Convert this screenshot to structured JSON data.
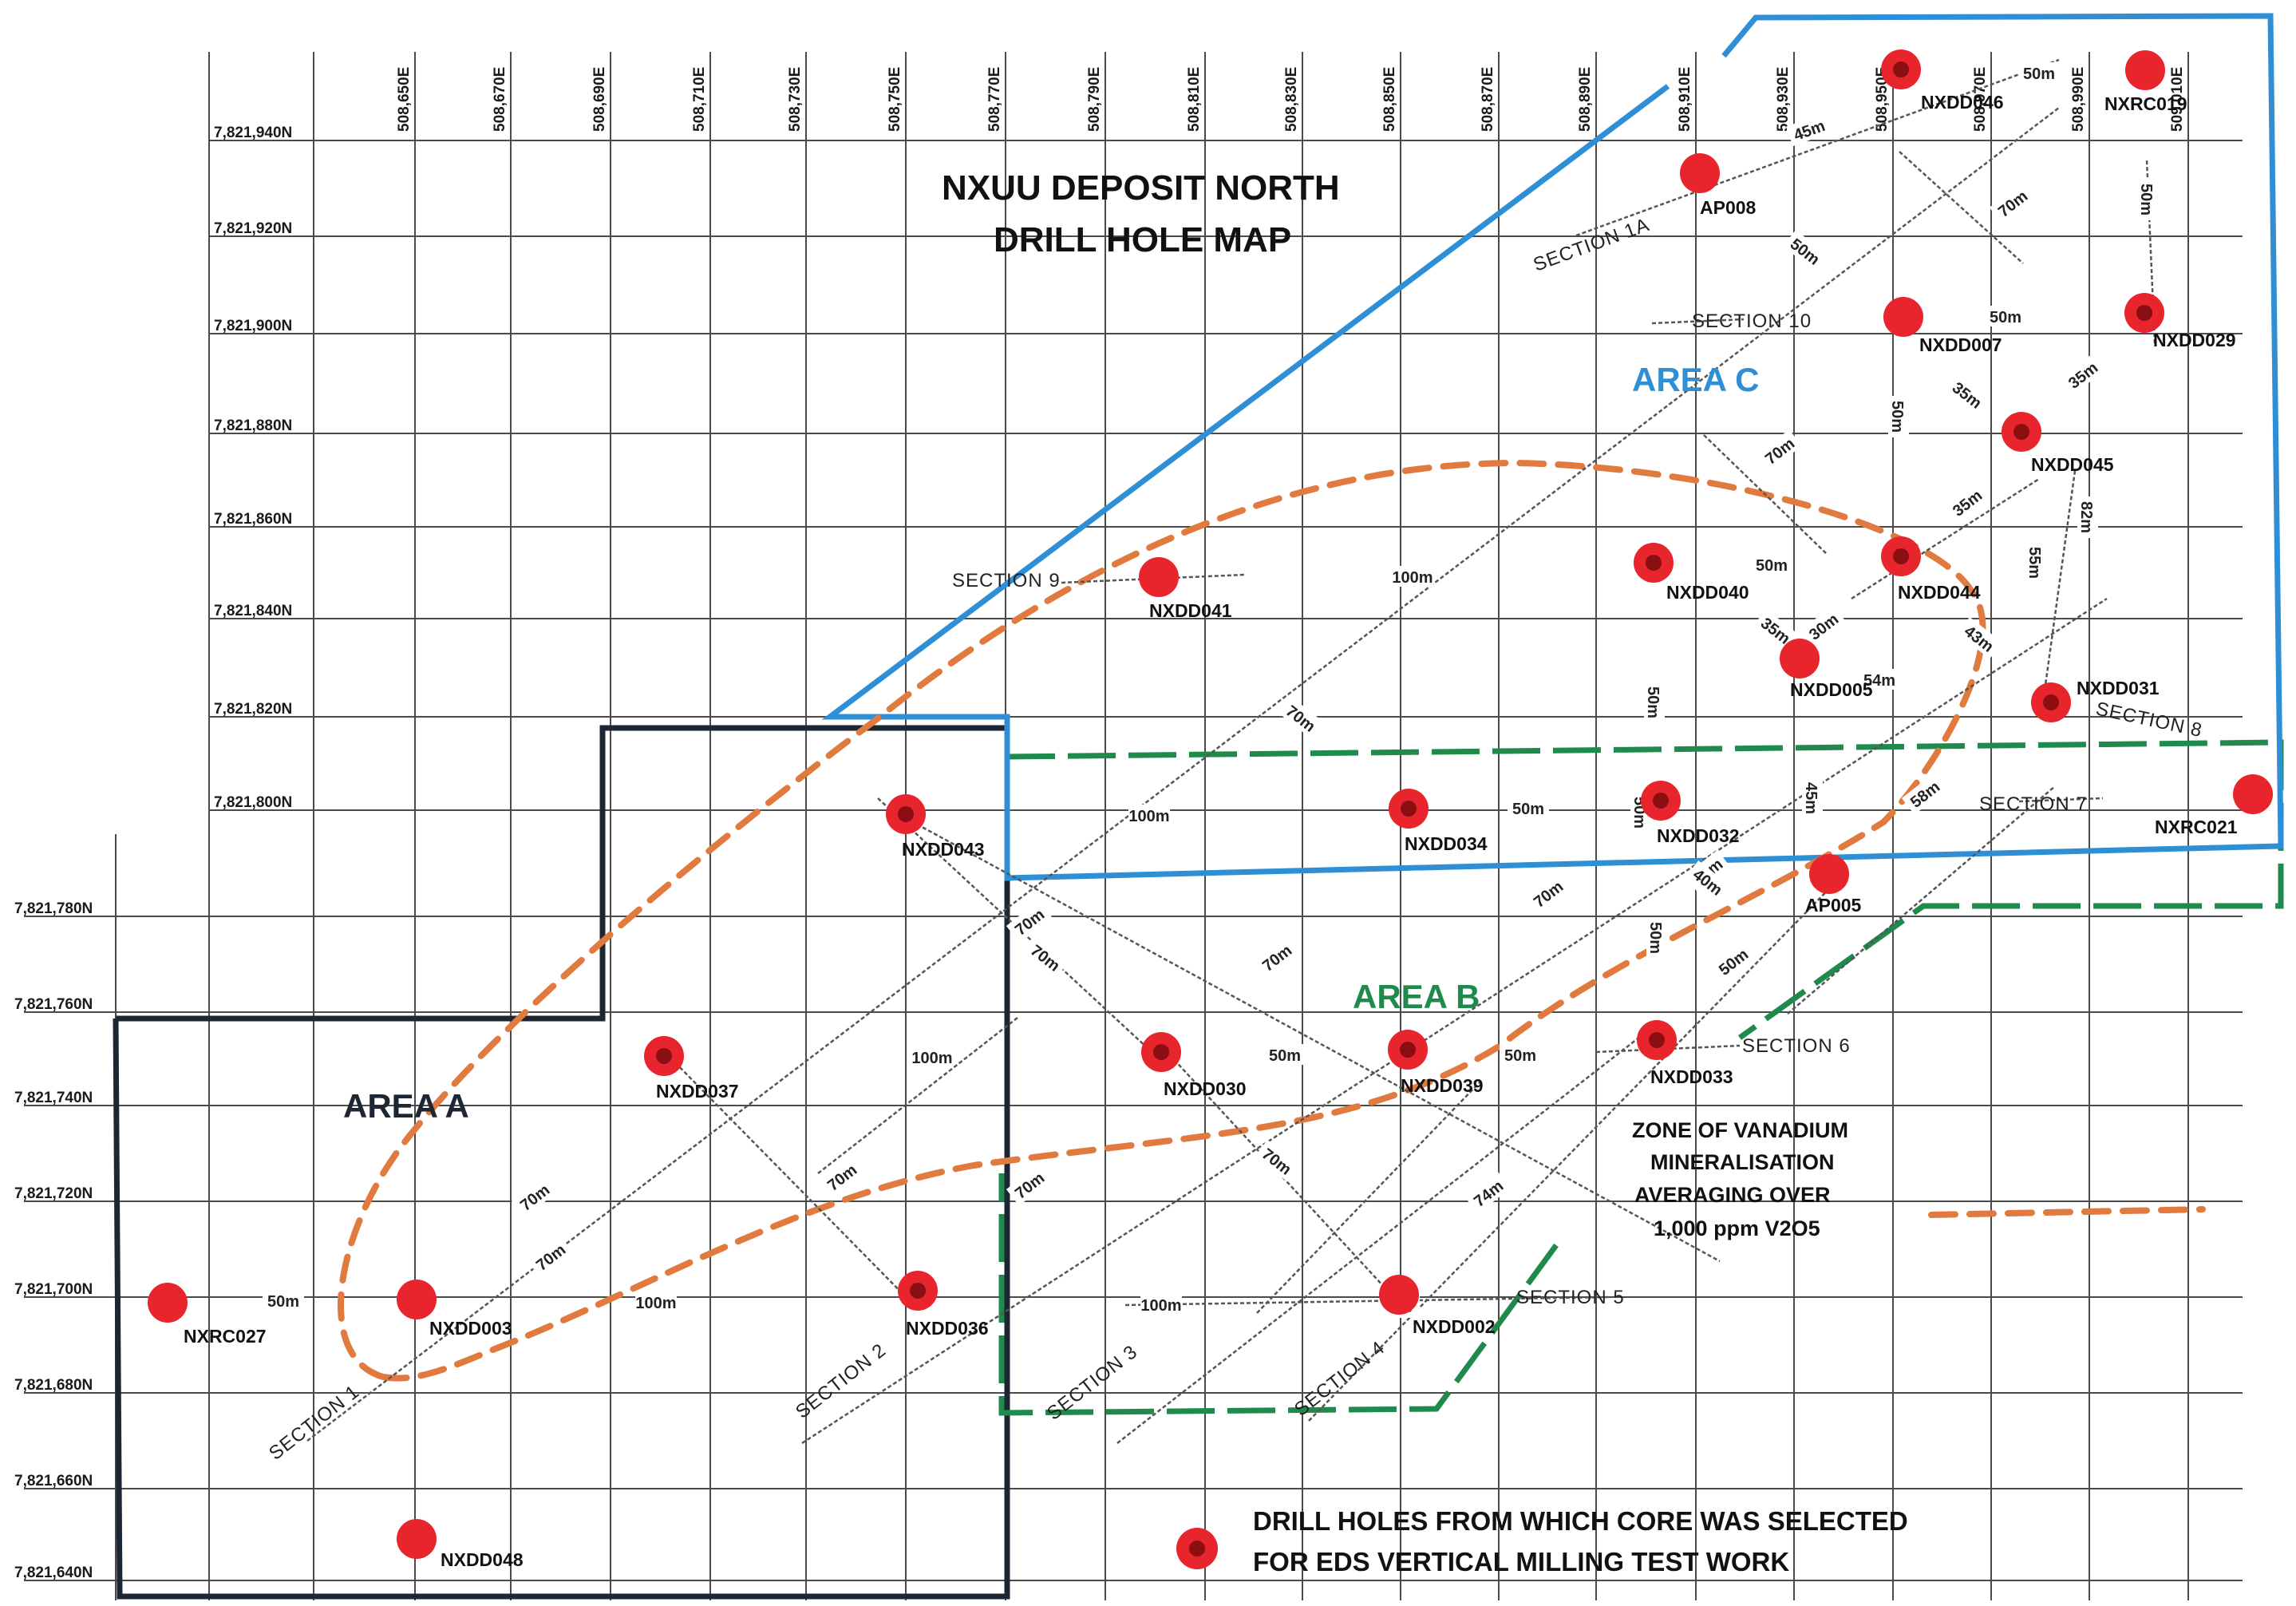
{
  "title": {
    "line1": "NXUU DEPOSIT NORTH",
    "line2": "DRILL HOLE MAP"
  },
  "eastings": [
    "508,650E",
    "508,670E",
    "508,690E",
    "508,710E",
    "508,730E",
    "508,750E",
    "508,770E",
    "508,790E",
    "508,810E",
    "508,830E",
    "508,850E",
    "508,870E",
    "508,890E",
    "508,910E",
    "508,930E",
    "508,950E",
    "508,970E",
    "508,990E",
    "509,010E"
  ],
  "northings": [
    "7,821,940N",
    "7,821,920N",
    "7,821,900N",
    "7,821,880N",
    "7,821,860N",
    "7,821,840N",
    "7,821,820N",
    "7,821,800N",
    "7,821,780N",
    "7,821,760N",
    "7,821,740N",
    "7,821,720N",
    "7,821,700N",
    "7,821,680N",
    "7,821,660N",
    "7,821,640N"
  ],
  "areas": {
    "a": {
      "label": "AREA A",
      "color": "#1d2633"
    },
    "b": {
      "label": "AREA B",
      "color": "#1f8a4c"
    },
    "c": {
      "label": "AREA C",
      "color": "#2f8fd6"
    }
  },
  "drill_holes": [
    {
      "id": "NXRC027",
      "selected": false
    },
    {
      "id": "NXDD003",
      "selected": false
    },
    {
      "id": "NXDD048",
      "selected": false
    },
    {
      "id": "NXDD037",
      "selected": true
    },
    {
      "id": "NXDD036",
      "selected": true
    },
    {
      "id": "NXDD043",
      "selected": true
    },
    {
      "id": "NXDD030",
      "selected": true
    },
    {
      "id": "NXDD041",
      "selected": false
    },
    {
      "id": "NXDD039",
      "selected": true
    },
    {
      "id": "NXDD002",
      "selected": false
    },
    {
      "id": "NXDD034",
      "selected": true
    },
    {
      "id": "NXDD033",
      "selected": true
    },
    {
      "id": "NXDD032",
      "selected": true
    },
    {
      "id": "AP005",
      "selected": false
    },
    {
      "id": "NXDD040",
      "selected": true
    },
    {
      "id": "NXDD005",
      "selected": false
    },
    {
      "id": "NXDD044",
      "selected": true
    },
    {
      "id": "NXDD031",
      "selected": true
    },
    {
      "id": "NXDD045",
      "selected": true
    },
    {
      "id": "NXDD007",
      "selected": false
    },
    {
      "id": "NXDD029",
      "selected": true
    },
    {
      "id": "AP008",
      "selected": false
    },
    {
      "id": "NXDD046",
      "selected": true
    },
    {
      "id": "NXRC019",
      "selected": false
    },
    {
      "id": "NXRC021",
      "selected": false
    }
  ],
  "sections": [
    "SECTION 1",
    "SECTION 2",
    "SECTION 3",
    "SECTION 4",
    "SECTION 5",
    "SECTION 6",
    "SECTION 7",
    "SECTION 8",
    "SECTION 9",
    "SECTION 10",
    "SECTION 1A"
  ],
  "distances": [
    "50m",
    "100m",
    "70m",
    "70m",
    "100m",
    "70m",
    "100m",
    "100m",
    "70m",
    "70m",
    "70m",
    "70m",
    "70m",
    "50m",
    "50m",
    "74m",
    "50m",
    "50m",
    "50m",
    "70m",
    "50m",
    "40m",
    "40m",
    "50m",
    "100m",
    "70m",
    "58m",
    "45m",
    "35m",
    "30m",
    "54m",
    "50m",
    "43m",
    "50m",
    "35m",
    "55m",
    "82m",
    "35m",
    "35m",
    "50m",
    "70m",
    "45m",
    "50m",
    "50m",
    "70m",
    "50m",
    "50m"
  ],
  "zone_label": [
    "ZONE OF VANADIUM",
    "MINERALISATION",
    "AVERAGING OVER",
    "1,000 ppm V2O5"
  ],
  "legend": {
    "line1": "DRILL HOLES FROM WHICH CORE WAS  SELECTED",
    "line2": "FOR EDS VERTICAL MILLING TEST WORK",
    "marker_color": "#e8242c",
    "zone_color": "#e07a3f"
  }
}
